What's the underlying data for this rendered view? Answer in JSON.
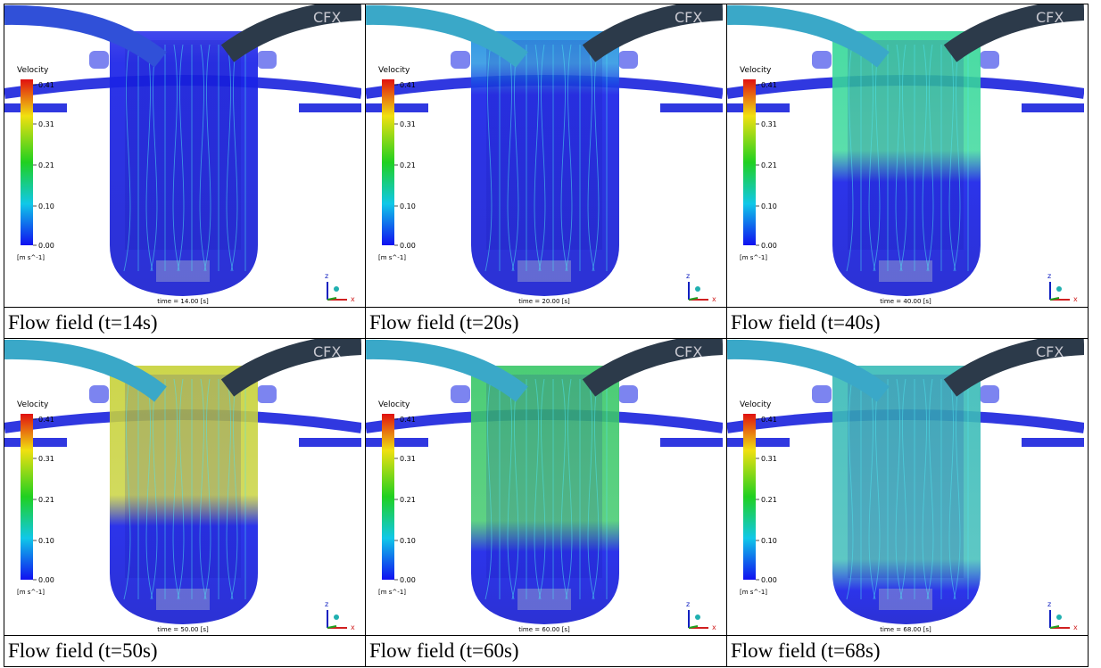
{
  "legend": {
    "title": "Velocity",
    "ticks": [
      "0.41",
      "0.31",
      "0.21",
      "0.10",
      "0.00"
    ],
    "unit": "[m s^-1]"
  },
  "logo": "CFX",
  "axes": {
    "z": "z",
    "x": "x"
  },
  "panels": [
    {
      "time": "time = 14.00 [s]",
      "caption": "Flow field (t=14s)"
    },
    {
      "time": "time = 20.00 [s]",
      "caption": "Flow field (t=20s)"
    },
    {
      "time": "time = 40.00 [s]",
      "caption": "Flow field (t=40s)"
    },
    {
      "time": "time = 50.00 [s]",
      "caption": "Flow field (t=50s)"
    },
    {
      "time": "time = 60.00 [s]",
      "caption": "Flow field (t=60s)"
    },
    {
      "time": "time = 68.00 [s]",
      "caption": "Flow field (t=68s)"
    }
  ]
}
